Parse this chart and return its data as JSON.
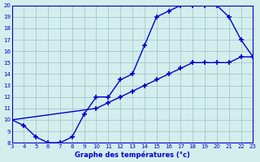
{
  "line1_x": [
    3,
    4,
    5,
    6,
    7,
    8,
    9,
    10,
    11,
    12,
    13,
    14,
    15,
    16,
    17,
    18,
    19,
    20,
    21,
    22,
    23
  ],
  "line1_y": [
    10,
    9.5,
    8.5,
    8,
    8,
    8.5,
    10.5,
    12,
    12,
    13.5,
    14,
    16.5,
    19,
    19.5,
    20,
    20,
    20,
    20,
    19,
    17,
    15.5
  ],
  "line2_x": [
    3,
    10,
    11,
    12,
    13,
    14,
    15,
    16,
    17,
    18,
    19,
    20,
    21,
    22,
    23
  ],
  "line2_y": [
    10,
    11,
    11.5,
    12,
    12.5,
    13,
    13.5,
    14,
    14.5,
    15,
    15,
    15,
    15,
    15.5,
    15.5
  ],
  "line_color": "#0000cc",
  "bg_color": "#d4eeed",
  "grid_color": "#a8cece",
  "xlabel": "Graphe des températures (°c)",
  "xlim": [
    3,
    23
  ],
  "ylim": [
    8,
    20
  ],
  "xticks": [
    3,
    4,
    5,
    6,
    7,
    8,
    9,
    10,
    11,
    12,
    13,
    14,
    15,
    16,
    17,
    18,
    19,
    20,
    21,
    22,
    23
  ],
  "yticks": [
    8,
    9,
    10,
    11,
    12,
    13,
    14,
    15,
    16,
    17,
    18,
    19,
    20
  ]
}
